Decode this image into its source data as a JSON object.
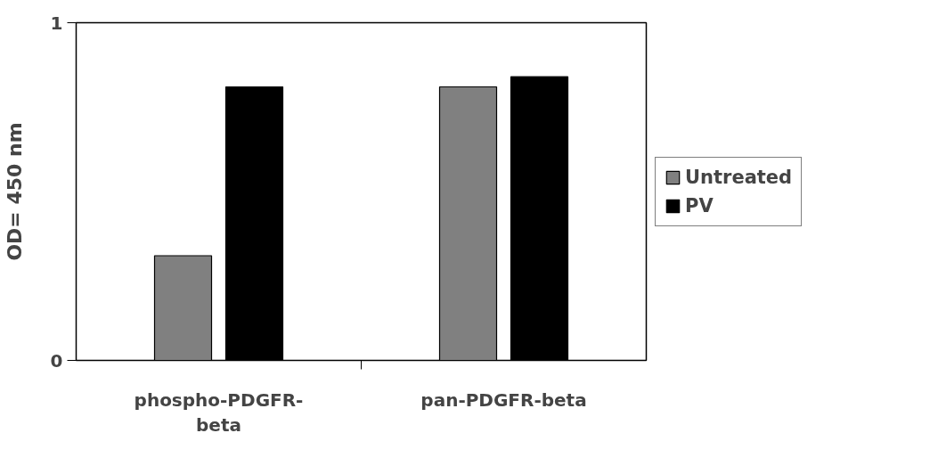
{
  "chart_data": {
    "type": "bar",
    "ylabel": "OD= 450 nm",
    "categories": [
      "phospho-PDGFR-beta",
      "pan-PDGFR-beta"
    ],
    "series": [
      {
        "name": "Untreated",
        "color": "#808080",
        "values": [
          0.31,
          0.81
        ]
      },
      {
        "name": "PV",
        "color": "#000000",
        "values": [
          0.81,
          0.84
        ]
      }
    ],
    "ylim": [
      0,
      1
    ],
    "yticks": [
      0,
      1
    ],
    "grid": false,
    "legend": "right"
  }
}
